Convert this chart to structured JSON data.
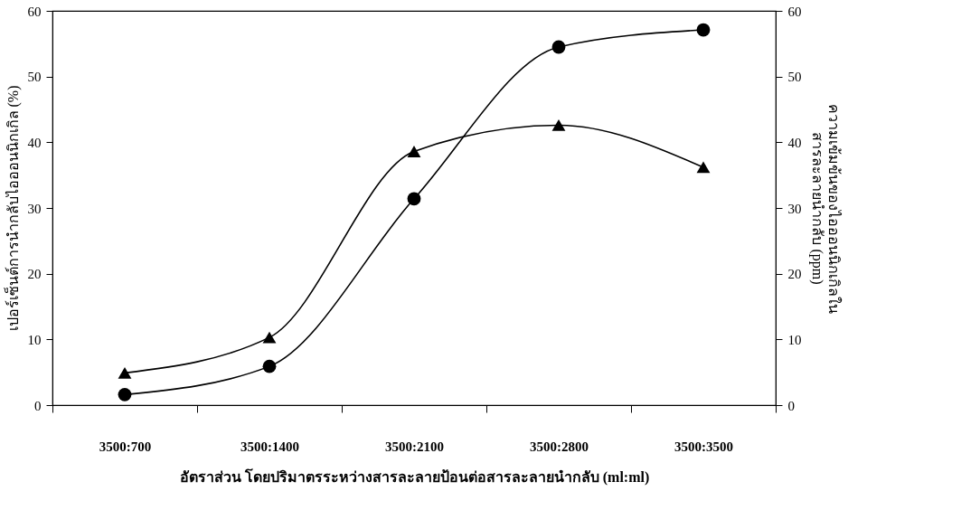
{
  "chart_data": {
    "type": "line",
    "xlabel": "อัตราส่วน โดยปริมาตรระหว่างสารละลายป้อนต่อสารละลายนำกลับ (ml:ml)",
    "ylabel": "เปอร์เซ็นต์การนำกลับไอออนนิกเกิล (%)",
    "y2label": "ความเข้มข้นของไอออนนิกเกิลใน\nสารละลายนำกลับ (ppm)",
    "categories": [
      "3500:700",
      "3500:1400",
      "3500:2100",
      "3500:2800",
      "3500:3500"
    ],
    "series": [
      {
        "color": "#000000",
        "marker": "circle",
        "values": [
          1.6,
          5.9,
          31.4,
          54.5,
          57.1
        ]
      },
      {
        "color": "#000000",
        "marker": "triangle",
        "axis": "y2",
        "values": [
          4.9,
          10.3,
          38.6,
          42.6,
          36.2
        ]
      }
    ],
    "ylim": [
      0,
      60
    ],
    "yticks": [
      0,
      10,
      20,
      30,
      40,
      50,
      60
    ],
    "y2lim": [
      0,
      60
    ],
    "y2ticks": [
      0,
      10,
      20,
      30,
      40,
      50,
      60
    ],
    "grid": false,
    "line_style": "solid"
  }
}
